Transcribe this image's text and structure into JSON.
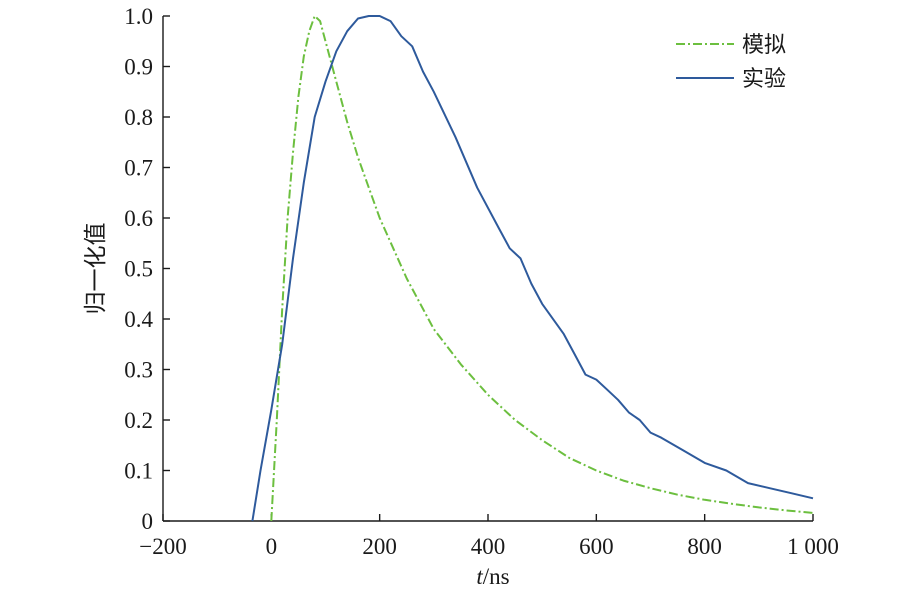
{
  "chart_data": {
    "type": "line",
    "xlabel": {
      "italic": "t",
      "rest": "/ns"
    },
    "ylabel": "归一化值",
    "xlim": [
      -200,
      1000
    ],
    "ylim": [
      0,
      1.0
    ],
    "x_ticks": [
      -200,
      0,
      200,
      400,
      600,
      800,
      1000
    ],
    "x_tick_labels": [
      "−200",
      "0",
      "200",
      "400",
      "600",
      "800",
      "1 000"
    ],
    "y_ticks": [
      0,
      0.1,
      0.2,
      0.3,
      0.4,
      0.5,
      0.6,
      0.7,
      0.8,
      0.9,
      1.0
    ],
    "y_tick_labels": [
      "0",
      "0.1",
      "0.2",
      "0.3",
      "0.4",
      "0.5",
      "0.6",
      "0.7",
      "0.8",
      "0.9",
      "1.0"
    ],
    "grid": false,
    "legend_position": "top-right",
    "series": [
      {
        "name": "模拟",
        "color": "#6cbf3f",
        "style": "dash-dot",
        "x": [
          0,
          10,
          20,
          30,
          40,
          50,
          60,
          70,
          80,
          90,
          100,
          120,
          140,
          160,
          180,
          200,
          250,
          300,
          350,
          400,
          450,
          500,
          550,
          600,
          650,
          700,
          750,
          800,
          850,
          900,
          950,
          1000
        ],
        "y": [
          0,
          0.2,
          0.42,
          0.6,
          0.73,
          0.84,
          0.92,
          0.97,
          1.0,
          0.99,
          0.95,
          0.87,
          0.79,
          0.72,
          0.66,
          0.6,
          0.48,
          0.38,
          0.31,
          0.25,
          0.2,
          0.16,
          0.125,
          0.1,
          0.08,
          0.065,
          0.052,
          0.042,
          0.034,
          0.027,
          0.021,
          0.016
        ]
      },
      {
        "name": "实验",
        "color": "#2e5a9c",
        "style": "solid",
        "x": [
          -35,
          -20,
          0,
          20,
          40,
          60,
          80,
          100,
          120,
          140,
          160,
          180,
          200,
          220,
          240,
          260,
          280,
          300,
          340,
          380,
          420,
          440,
          460,
          480,
          500,
          540,
          560,
          580,
          600,
          620,
          640,
          660,
          680,
          700,
          720,
          760,
          800,
          840,
          880,
          920,
          960,
          1000
        ],
        "y": [
          0,
          0.1,
          0.22,
          0.35,
          0.52,
          0.67,
          0.8,
          0.87,
          0.93,
          0.97,
          0.995,
          1.0,
          1.0,
          0.99,
          0.96,
          0.94,
          0.89,
          0.85,
          0.76,
          0.66,
          0.58,
          0.54,
          0.52,
          0.47,
          0.43,
          0.37,
          0.33,
          0.29,
          0.28,
          0.26,
          0.24,
          0.215,
          0.2,
          0.175,
          0.165,
          0.14,
          0.115,
          0.1,
          0.075,
          0.065,
          0.055,
          0.045
        ]
      }
    ]
  }
}
